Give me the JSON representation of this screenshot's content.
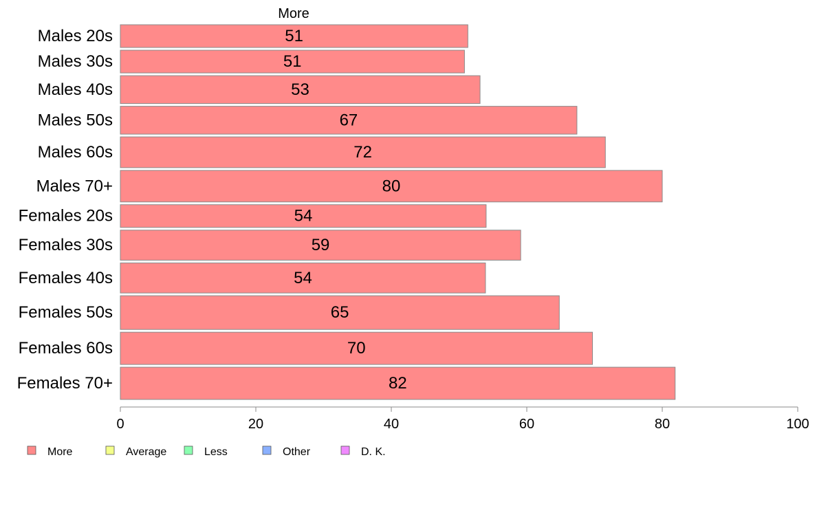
{
  "chart_data": {
    "type": "bar",
    "orientation": "horizontal",
    "title": "More",
    "categories": [
      "Males 20s",
      "Males 30s",
      "Males 40s",
      "Males 50s",
      "Males 60s",
      "Males 70+",
      "Females 20s",
      "Females 30s",
      "Females 40s",
      "Females 50s",
      "Females 60s",
      "Females 70+"
    ],
    "series": [
      {
        "name": "More",
        "values": [
          51.3,
          50.8,
          53.1,
          67.4,
          71.6,
          80.0,
          54.0,
          59.1,
          53.9,
          64.8,
          69.7,
          81.9
        ],
        "labels": [
          "51",
          "51",
          "53",
          "67",
          "72",
          "80",
          "54",
          "59",
          "54",
          "65",
          "70",
          "82"
        ],
        "color": "#ff8a8a"
      }
    ],
    "bar_weights": [
      31,
      31,
      38,
      38,
      42,
      43,
      31,
      41,
      41,
      46,
      44,
      44
    ],
    "xlim": [
      0,
      100
    ],
    "xticks": [
      "0",
      "20",
      "40",
      "60",
      "80",
      "100"
    ],
    "legend": {
      "placement": "bottom",
      "items": [
        {
          "label": "More",
          "color": "#ff8a8a"
        },
        {
          "label": "Average",
          "color": "#f4ff8a"
        },
        {
          "label": "Less",
          "color": "#8affb0"
        },
        {
          "label": "Other",
          "color": "#8ab0ff"
        },
        {
          "label": "D. K.",
          "color": "#f08aff"
        }
      ]
    },
    "bar_border_color": "#8a8a8a",
    "axis_color": "#8a8a8a"
  }
}
